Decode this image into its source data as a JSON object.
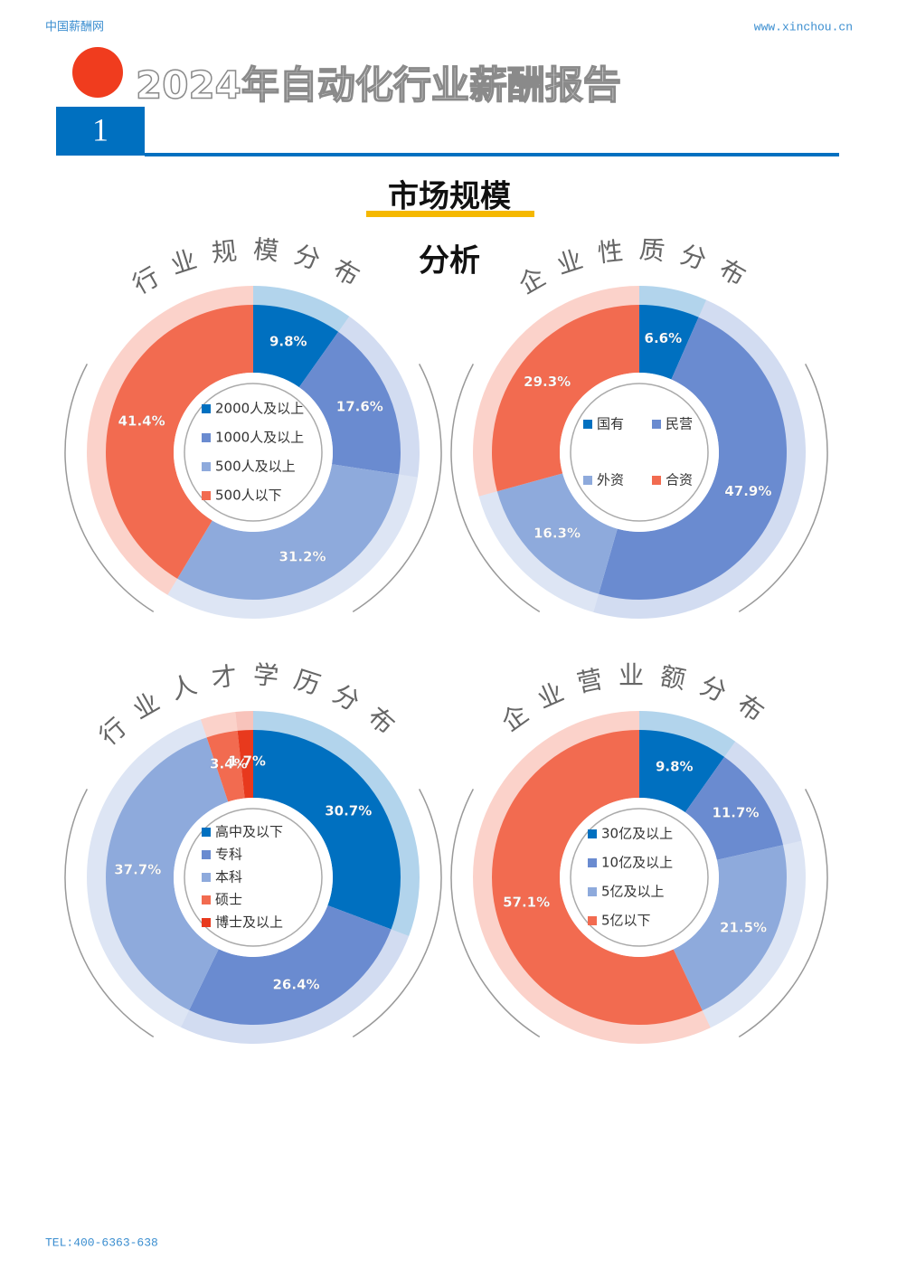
{
  "header": {
    "site": "中国薪酬网",
    "url": "www.xinchou.cn",
    "title": "2024年自动化行业薪酬报告",
    "section_number": "1",
    "section_title": "市场规模",
    "section_title_line2": "分析"
  },
  "footer": {
    "phone": "TEL:400-6363-638"
  },
  "chart_data": [
    {
      "type": "pie",
      "title": "行业规模分布",
      "categories": [
        "2000人及以上",
        "1000人及以上",
        "500人及以上",
        "500人以下"
      ],
      "values": [
        9.8,
        17.6,
        31.2,
        41.4
      ],
      "value_labels": [
        "9.8%",
        "17.6%",
        "31.2%",
        "41.4%"
      ],
      "colors": [
        "#0070c0",
        "#6a8bd0",
        "#8eaadc",
        "#f26b50"
      ],
      "legend_columns": 1
    },
    {
      "type": "pie",
      "title": "企业性质分布",
      "categories": [
        "国有",
        "民营",
        "外资",
        "合资"
      ],
      "values": [
        6.6,
        47.9,
        16.3,
        29.3
      ],
      "value_labels": [
        "6.6%",
        "47.9%",
        "16.3%",
        "29.3%"
      ],
      "colors": [
        "#0070c0",
        "#6a8bd0",
        "#8eaadc",
        "#f26b50"
      ],
      "legend_columns": 2
    },
    {
      "type": "pie",
      "title": "行业人才学历分布",
      "categories": [
        "高中及以下",
        "专科",
        "本科",
        "硕士",
        "博士及以上"
      ],
      "values": [
        30.7,
        26.4,
        37.7,
        3.4,
        1.7
      ],
      "value_labels": [
        "30.7%",
        "26.4%",
        "37.7%",
        "3.4%",
        "1.7%"
      ],
      "colors": [
        "#0070c0",
        "#6a8bd0",
        "#8eaadc",
        "#f26b50",
        "#e8391d"
      ],
      "legend_columns": 1
    },
    {
      "type": "pie",
      "title": "企业营业额分布",
      "categories": [
        "30亿及以上",
        "10亿及以上",
        "5亿及以上",
        "5亿以下"
      ],
      "values": [
        9.8,
        11.7,
        21.5,
        57.1
      ],
      "value_labels": [
        "9.8%",
        "11.7%",
        "21.5%",
        "57.1%"
      ],
      "colors": [
        "#0070c0",
        "#6a8bd0",
        "#8eaadc",
        "#f26b50"
      ],
      "legend_columns": 1
    }
  ]
}
